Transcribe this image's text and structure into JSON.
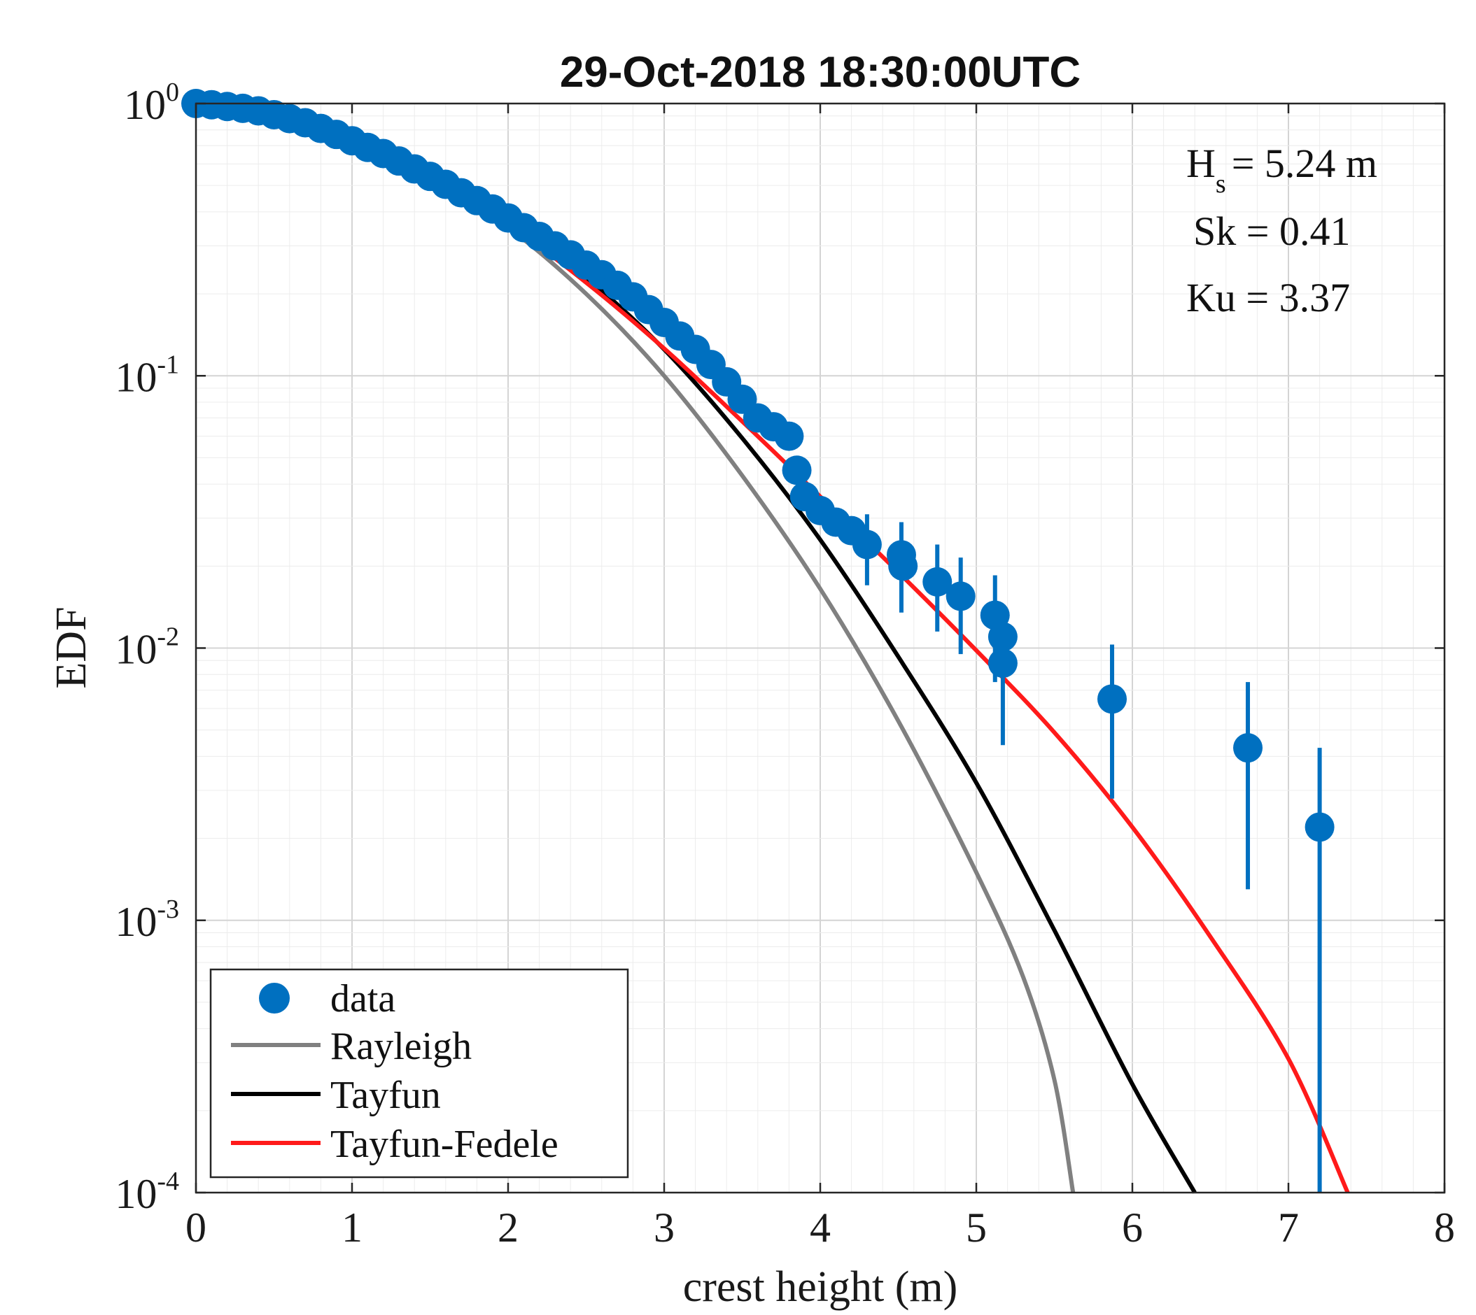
{
  "chart_data": {
    "type": "scatter",
    "title": "29-Oct-2018 18:30:00UTC",
    "xlabel": "crest height (m)",
    "ylabel": "EDF",
    "xlim": [
      0,
      8
    ],
    "ylim": [
      0.0001,
      1
    ],
    "yscale": "log",
    "grid": true,
    "x_ticks": [
      "0",
      "1",
      "2",
      "3",
      "4",
      "5",
      "6",
      "7",
      "8"
    ],
    "y_ticks": [
      {
        "base": "10",
        "exp": "-4"
      },
      {
        "base": "10",
        "exp": "-3"
      },
      {
        "base": "10",
        "exp": "-2"
      },
      {
        "base": "10",
        "exp": "-1"
      },
      {
        "base": "10",
        "exp": "0"
      }
    ],
    "annotations": {
      "hs_label": "H",
      "hs_sub": "s",
      "hs_value": "= 5.24 m",
      "sk": "Sk = 0.41",
      "ku": "Ku = 3.37"
    },
    "legend": {
      "position": "bottom-left",
      "entries": [
        "data",
        "Rayleigh",
        "Tayfun",
        "Tayfun-Fedele"
      ]
    },
    "colors": {
      "data": "#0070c0",
      "Rayleigh": "#808080",
      "Tayfun": "#000000",
      "Tayfun-Fedele": "#ff1a1a"
    },
    "series": [
      {
        "name": "Rayleigh",
        "x": [
          0,
          0.5,
          1.0,
          1.5,
          2.0,
          2.5,
          3.0,
          3.5,
          4.0,
          4.5,
          5.0,
          5.3,
          5.5,
          5.62
        ],
        "y": [
          1.0,
          0.88,
          0.72,
          0.53,
          0.35,
          0.2,
          0.1,
          0.043,
          0.0165,
          0.0054,
          0.0015,
          0.00062,
          0.00026,
          0.0001
        ]
      },
      {
        "name": "Tayfun",
        "x": [
          0,
          0.5,
          1.0,
          1.5,
          2.0,
          2.5,
          3.0,
          3.5,
          4.0,
          4.5,
          5.0,
          5.5,
          6.0,
          6.4
        ],
        "y": [
          1.0,
          0.9,
          0.74,
          0.55,
          0.38,
          0.23,
          0.125,
          0.059,
          0.025,
          0.0093,
          0.0032,
          0.00092,
          0.00025,
          0.0001
        ]
      },
      {
        "name": "Tayfun-Fedele",
        "x": [
          0,
          0.5,
          1.0,
          1.5,
          2.0,
          2.5,
          3.0,
          3.5,
          4.0,
          4.5,
          5.0,
          5.5,
          6.0,
          6.5,
          7.0,
          7.38
        ],
        "y": [
          1.0,
          0.9,
          0.72,
          0.53,
          0.36,
          0.22,
          0.126,
          0.068,
          0.036,
          0.019,
          0.0098,
          0.0049,
          0.0022,
          0.00087,
          0.00031,
          0.0001
        ]
      }
    ],
    "data_points": [
      {
        "x": 0.0,
        "y": 1.0
      },
      {
        "x": 0.1,
        "y": 0.99
      },
      {
        "x": 0.2,
        "y": 0.975
      },
      {
        "x": 0.3,
        "y": 0.96
      },
      {
        "x": 0.4,
        "y": 0.94
      },
      {
        "x": 0.5,
        "y": 0.91
      },
      {
        "x": 0.6,
        "y": 0.88
      },
      {
        "x": 0.7,
        "y": 0.85
      },
      {
        "x": 0.8,
        "y": 0.81
      },
      {
        "x": 0.9,
        "y": 0.77
      },
      {
        "x": 1.0,
        "y": 0.73
      },
      {
        "x": 1.1,
        "y": 0.69
      },
      {
        "x": 1.2,
        "y": 0.655
      },
      {
        "x": 1.3,
        "y": 0.615
      },
      {
        "x": 1.4,
        "y": 0.575
      },
      {
        "x": 1.5,
        "y": 0.54
      },
      {
        "x": 1.6,
        "y": 0.505
      },
      {
        "x": 1.7,
        "y": 0.47
      },
      {
        "x": 1.8,
        "y": 0.44
      },
      {
        "x": 1.9,
        "y": 0.41
      },
      {
        "x": 2.0,
        "y": 0.38
      },
      {
        "x": 2.1,
        "y": 0.35
      },
      {
        "x": 2.2,
        "y": 0.325
      },
      {
        "x": 2.3,
        "y": 0.3
      },
      {
        "x": 2.4,
        "y": 0.278
      },
      {
        "x": 2.5,
        "y": 0.255
      },
      {
        "x": 2.6,
        "y": 0.235
      },
      {
        "x": 2.7,
        "y": 0.215
      },
      {
        "x": 2.8,
        "y": 0.195
      },
      {
        "x": 2.9,
        "y": 0.175
      },
      {
        "x": 3.0,
        "y": 0.157
      },
      {
        "x": 3.1,
        "y": 0.14
      },
      {
        "x": 3.2,
        "y": 0.125
      },
      {
        "x": 3.3,
        "y": 0.11
      },
      {
        "x": 3.4,
        "y": 0.095
      },
      {
        "x": 3.5,
        "y": 0.082
      },
      {
        "x": 3.6,
        "y": 0.07
      },
      {
        "x": 3.7,
        "y": 0.065
      },
      {
        "x": 3.8,
        "y": 0.06
      },
      {
        "x": 3.85,
        "y": 0.045
      },
      {
        "x": 3.9,
        "y": 0.036
      },
      {
        "x": 4.0,
        "y": 0.032
      },
      {
        "x": 4.1,
        "y": 0.029
      },
      {
        "x": 4.2,
        "y": 0.027
      },
      {
        "x": 4.3,
        "y": 0.024,
        "err": [
          0.017,
          0.031
        ]
      },
      {
        "x": 4.52,
        "y": 0.022,
        "err": [
          0.0135,
          0.029
        ]
      },
      {
        "x": 4.53,
        "y": 0.02
      },
      {
        "x": 4.75,
        "y": 0.0175,
        "err": [
          0.0115,
          0.024
        ]
      },
      {
        "x": 4.9,
        "y": 0.0155,
        "err": [
          0.0095,
          0.0215
        ]
      },
      {
        "x": 5.12,
        "y": 0.0132,
        "err": [
          0.0075,
          0.0185
        ]
      },
      {
        "x": 5.17,
        "y": 0.011
      },
      {
        "x": 5.17,
        "y": 0.0088,
        "err": [
          0.0044,
          0.0135
        ]
      },
      {
        "x": 5.87,
        "y": 0.0065,
        "err": [
          0.0028,
          0.0103
        ]
      },
      {
        "x": 6.74,
        "y": 0.0043,
        "err": [
          0.0013,
          0.0075
        ]
      },
      {
        "x": 7.2,
        "y": 0.0022,
        "err": [
          0.0001,
          0.0043
        ]
      }
    ]
  }
}
